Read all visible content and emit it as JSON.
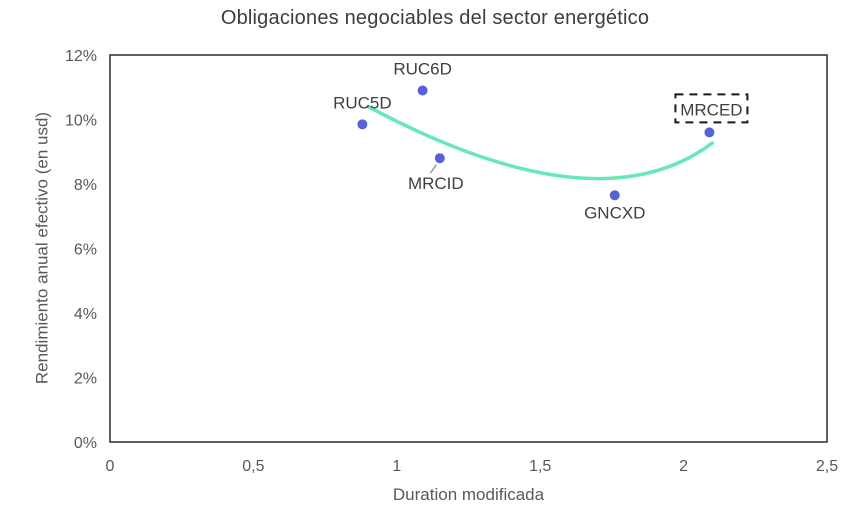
{
  "chart_data": {
    "type": "scatter",
    "title": "Obligaciones negociables del sector energético",
    "xlabel": "Duration modificada",
    "ylabel": "Rendimiento anual efectivo (en usd)",
    "xlim": [
      0,
      2.5
    ],
    "ylim": [
      0,
      12
    ],
    "grid": false,
    "legend": false,
    "x_ticks": [
      {
        "v": 0,
        "label": "0"
      },
      {
        "v": 0.5,
        "label": "0,5"
      },
      {
        "v": 1,
        "label": "1"
      },
      {
        "v": 1.5,
        "label": "1,5"
      },
      {
        "v": 2,
        "label": "2"
      },
      {
        "v": 2.5,
        "label": "2,5"
      }
    ],
    "y_ticks": [
      {
        "v": 0,
        "label": "0%"
      },
      {
        "v": 2,
        "label": "2%"
      },
      {
        "v": 4,
        "label": "4%"
      },
      {
        "v": 6,
        "label": "6%"
      },
      {
        "v": 8,
        "label": "8%"
      },
      {
        "v": 10,
        "label": "10%"
      },
      {
        "v": 12,
        "label": "12%"
      }
    ],
    "points": [
      {
        "name": "RUC5D",
        "x": 0.88,
        "y": 9.85,
        "label_position": "above"
      },
      {
        "name": "RUC6D",
        "x": 1.09,
        "y": 10.9,
        "label_position": "above"
      },
      {
        "name": "MRCID",
        "x": 1.15,
        "y": 8.8,
        "label_position": "below-leader"
      },
      {
        "name": "GNCXD",
        "x": 1.76,
        "y": 7.65,
        "label_position": "below"
      },
      {
        "name": "MRCED",
        "x": 2.09,
        "y": 9.6,
        "label_position": "boxed-above",
        "selected": true
      }
    ],
    "trend": {
      "shape": "quadratic-bezier",
      "start": [
        0.9,
        10.4
      ],
      "control": [
        1.7,
        6.6
      ],
      "end": [
        2.1,
        9.27
      ]
    },
    "colors": {
      "point": "#5861d6",
      "trend": "#67e8b4",
      "frame": "#2b2b2b",
      "tick_text": "#595959",
      "axis_title_text": "#595959",
      "title_text": "#3d3d3d",
      "point_label_text": "#3f3f3f",
      "annotation_box": "#1a1a1a",
      "leader_line": "#9a9a9a"
    }
  }
}
